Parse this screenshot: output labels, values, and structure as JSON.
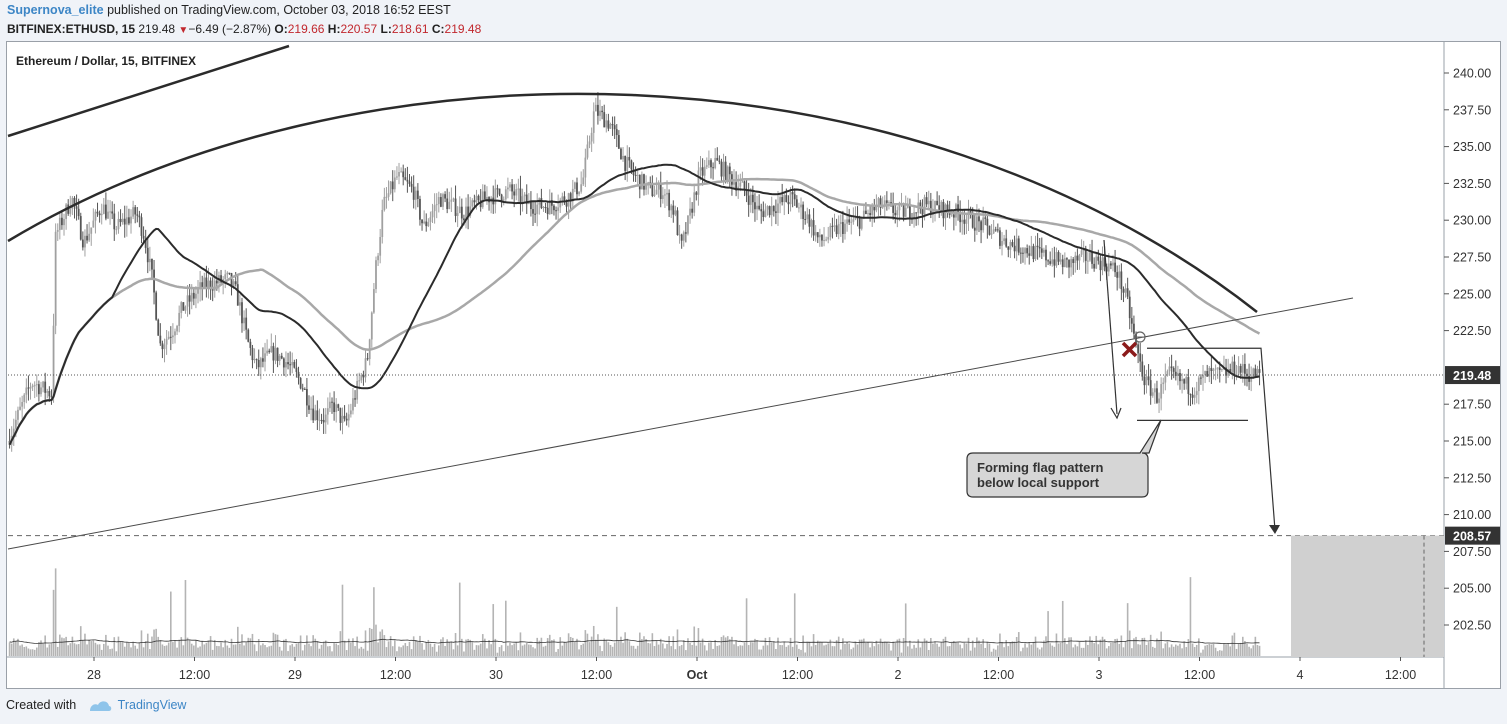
{
  "header": {
    "author": "Supernova_elite",
    "published_text": "published on TradingView.com, October 03, 2018 16:52 EEST",
    "symbol": "BITFINEX:ETHUSD, 15",
    "last": "219.48",
    "change": "−6.49 (−2.87%)",
    "o_label": "O:",
    "o_value": "219.66",
    "h_label": "H:",
    "h_value": "220.57",
    "l_label": "L:",
    "l_value": "218.61",
    "c_label": "C:",
    "c_value": "219.48"
  },
  "footer": {
    "created_with": "Created with",
    "brand": "TradingView"
  },
  "colors": {
    "background": "#ffffff",
    "candle": "#555555",
    "candle_light": "#a0a0a0",
    "ma_dark": "#2b2b2b",
    "ma_light": "#a8a8a8",
    "volume": "#b4b4b4",
    "label_box": "#333333",
    "marker": "#8b1a1a"
  },
  "chart_data": {
    "type": "candlestick",
    "title": "Ethereum / Dollar, 15, BITFINEX",
    "y_axis": {
      "min": 200,
      "max": 241.5,
      "ticks": [
        "240.00",
        "237.50",
        "235.00",
        "232.50",
        "230.00",
        "227.50",
        "225.00",
        "222.50",
        "217.50",
        "215.00",
        "212.50",
        "210.00",
        "207.50",
        "205.00",
        "202.50"
      ]
    },
    "x_ticks": [
      "28",
      "12:00",
      "29",
      "12:00",
      "30",
      "12:00",
      "Oct",
      "12:00",
      "2",
      "12:00",
      "3",
      "12:00",
      "4",
      "12:00"
    ],
    "x_range": {
      "start_day": 27.58,
      "end_day": 31.62
    },
    "price_path": [
      [
        27.58,
        215.0
      ],
      [
        27.7,
        219.0
      ],
      [
        27.8,
        218.2
      ],
      [
        27.82,
        229.0
      ],
      [
        27.9,
        231.5
      ],
      [
        27.96,
        228.5
      ],
      [
        28.05,
        231.0
      ],
      [
        28.12,
        229.5
      ],
      [
        28.22,
        230.5
      ],
      [
        28.26,
        229.0
      ],
      [
        28.3,
        226.0
      ],
      [
        28.34,
        221.5
      ],
      [
        28.4,
        222.5
      ],
      [
        28.45,
        224.0
      ],
      [
        28.55,
        225.5
      ],
      [
        28.68,
        226.0
      ],
      [
        28.72,
        225.0
      ],
      [
        28.78,
        221.5
      ],
      [
        28.82,
        220.0
      ],
      [
        28.9,
        221.0
      ],
      [
        28.96,
        220.5
      ],
      [
        29.04,
        219.0
      ],
      [
        29.1,
        217.0
      ],
      [
        29.16,
        216.5
      ],
      [
        29.2,
        217.5
      ],
      [
        29.26,
        216.0
      ],
      [
        29.33,
        219.0
      ],
      [
        29.37,
        220.5
      ],
      [
        29.41,
        226.5
      ],
      [
        29.45,
        231.0
      ],
      [
        29.52,
        233.0
      ],
      [
        29.6,
        232.0
      ],
      [
        29.65,
        229.5
      ],
      [
        29.73,
        231.5
      ],
      [
        29.85,
        230.5
      ],
      [
        29.96,
        231.5
      ],
      [
        30.08,
        232.0
      ],
      [
        30.18,
        231.0
      ],
      [
        30.28,
        231.0
      ],
      [
        30.36,
        231.5
      ],
      [
        30.44,
        232.5
      ],
      [
        30.5,
        237.5
      ],
      [
        30.58,
        236.5
      ],
      [
        30.65,
        234.0
      ],
      [
        30.7,
        233.0
      ],
      [
        30.78,
        232.0
      ],
      [
        30.84,
        232.0
      ],
      [
        30.9,
        230.5
      ],
      [
        30.93,
        228.0
      ],
      [
        30.97,
        230.0
      ],
      [
        31.02,
        233.0
      ],
      [
        31.1,
        234.0
      ],
      [
        31.17,
        233.0
      ],
      [
        31.25,
        232.0
      ],
      [
        31.32,
        230.5
      ],
      [
        31.4,
        231.0
      ],
      [
        31.48,
        231.5
      ],
      [
        31.57,
        230.0
      ],
      [
        31.62,
        228.5
      ],
      [
        31.72,
        229.5
      ],
      [
        31.82,
        230.0
      ],
      [
        31.92,
        231.0
      ],
      [
        32.02,
        230.5
      ],
      [
        32.15,
        231.0
      ],
      [
        32.3,
        230.5
      ],
      [
        32.45,
        229.5
      ],
      [
        32.55,
        228.5
      ],
      [
        32.65,
        228.0
      ],
      [
        32.75,
        227.5
      ],
      [
        32.85,
        227.0
      ],
      [
        32.95,
        227.5
      ],
      [
        33.05,
        227.0
      ],
      [
        33.1,
        226.5
      ],
      [
        33.15,
        224.5
      ],
      [
        33.2,
        221.0
      ],
      [
        33.24,
        219.0
      ],
      [
        33.3,
        218.0
      ],
      [
        33.36,
        219.5
      ],
      [
        33.42,
        219.0
      ],
      [
        33.48,
        218.5
      ],
      [
        33.55,
        219.5
      ],
      [
        33.62,
        219.5
      ],
      [
        33.7,
        220.0
      ],
      [
        33.75,
        219.5
      ],
      [
        33.8,
        219.5
      ]
    ],
    "overlays": {
      "ma_fast_name": "",
      "ma_slow_name": "",
      "arc_top_label": "",
      "support_line_label": ""
    },
    "annotation": "Forming flag pattern\nbelow local support",
    "annotation_lines": [
      "Forming flag pattern",
      "below local support"
    ],
    "price_label_current": "219.48",
    "price_label_target": "208.57",
    "current_price": 219.48,
    "target_price": 208.57,
    "flag_range": {
      "top": 221.3,
      "bottom": 216.4
    }
  }
}
